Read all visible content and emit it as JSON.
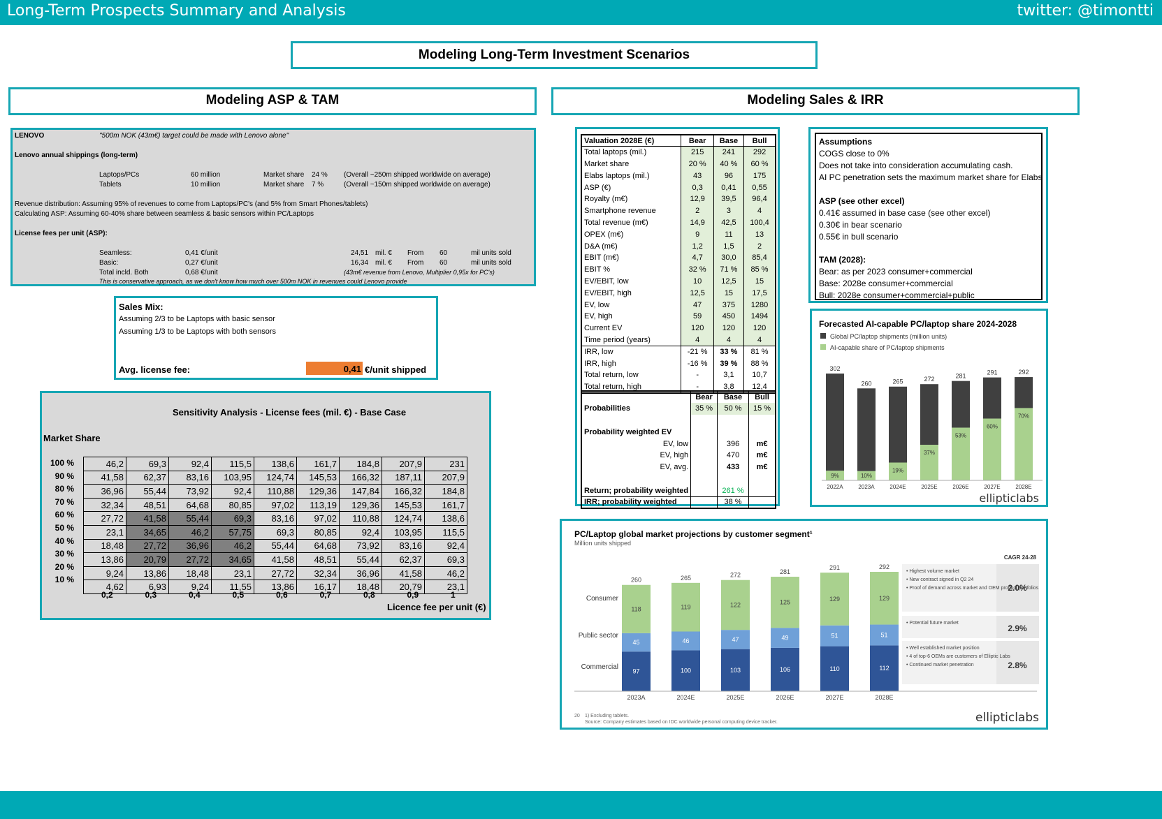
{
  "header": {
    "title": "Long-Term Prospects Summary and Analysis",
    "twitter": "twitter: @timontti"
  },
  "main_title": "Modeling Long-Term Investment Scenarios",
  "left_title": "Modeling ASP & TAM",
  "right_title": "Modeling Sales & IRR",
  "lenovo": {
    "label": "LENOVO",
    "quote": "\"500m NOK (43m€) target could be made with Lenovo alone\"",
    "ship_title": "Lenovo annual shippings (long-term)",
    "rows": [
      {
        "name": "Laptops/PCs",
        "units": "60 million",
        "ms_label": "Market share",
        "ms": "24 %",
        "note": "(Overall ~250m shipped worldwide on average)"
      },
      {
        "name": "Tablets",
        "units": "10 million",
        "ms_label": "Market share",
        "ms": "7 %",
        "note": "(Overall ~150m shipped worldwide on average)"
      }
    ],
    "rev_dist": "Revenue distribution: Assuming 95% of revenues to come from Laptops/PC's (and 5% from Smart Phones/tablets)",
    "calc_asp": "Calculating ASP: Assuming 60-40% share between seamless & basic sensors within PC/Laptops",
    "license_title": "License fees per unit (ASP):",
    "fees": [
      {
        "name": "Seamless:",
        "fee": "0,41 €/unit",
        "rev": "24,51",
        "unit": "mil. €",
        "from": "From",
        "n": "60",
        "sold": "mil units sold"
      },
      {
        "name": "Basic:",
        "fee": "0,27 €/unit",
        "rev": "16,34",
        "unit": "mil. €",
        "from": "From",
        "n": "60",
        "sold": "mil units sold"
      }
    ],
    "total_name": "Total incld. Both",
    "total_fee": "0,68 €/unit",
    "total_note": "(43m€ revenue from Lenovo, Multiplier 0,95x for PC's)",
    "conservative": "This is conservative approach, as we don't know how much over 500m NOK in revenues could Lenovo provide"
  },
  "sales_mix": {
    "title": "Sales Mix:",
    "line1": "Assuming 2/3 to be Laptops with basic sensor",
    "line2": "Assuming 1/3 to be Laptops with both sensors",
    "fee_label": "Avg. license fee:",
    "fee_value": "0,41",
    "fee_unit": "€/unit shipped",
    "accent": "#ed7d31"
  },
  "sensitivity": {
    "title": "Sensitivity Analysis - License fees (mil. €) - Base Case",
    "ylabel": "Market Share",
    "xlabel": "Licence fee per unit (€)",
    "rows": [
      "100 %",
      "90 %",
      "80 %",
      "70 %",
      "60 %",
      "50 %",
      "40 %",
      "30 %",
      "20 %",
      "10 %"
    ],
    "cols": [
      "0,2",
      "0,3",
      "0,4",
      "0,5",
      "0,6",
      "0,7",
      "0,8",
      "0,9",
      "1"
    ],
    "values": [
      [
        "46,2",
        "69,3",
        "92,4",
        "115,5",
        "138,6",
        "161,7",
        "184,8",
        "207,9",
        "231"
      ],
      [
        "41,58",
        "62,37",
        "83,16",
        "103,95",
        "124,74",
        "145,53",
        "166,32",
        "187,11",
        "207,9"
      ],
      [
        "36,96",
        "55,44",
        "73,92",
        "92,4",
        "110,88",
        "129,36",
        "147,84",
        "166,32",
        "184,8"
      ],
      [
        "32,34",
        "48,51",
        "64,68",
        "80,85",
        "97,02",
        "113,19",
        "129,36",
        "145,53",
        "161,7"
      ],
      [
        "27,72",
        "41,58",
        "55,44",
        "69,3",
        "83,16",
        "97,02",
        "110,88",
        "124,74",
        "138,6"
      ],
      [
        "23,1",
        "34,65",
        "46,2",
        "57,75",
        "69,3",
        "80,85",
        "92,4",
        "103,95",
        "115,5"
      ],
      [
        "18,48",
        "27,72",
        "36,96",
        "46,2",
        "55,44",
        "64,68",
        "73,92",
        "83,16",
        "92,4"
      ],
      [
        "13,86",
        "20,79",
        "27,72",
        "34,65",
        "41,58",
        "48,51",
        "55,44",
        "62,37",
        "69,3"
      ],
      [
        "9,24",
        "13,86",
        "18,48",
        "23,1",
        "27,72",
        "32,34",
        "36,96",
        "41,58",
        "46,2"
      ],
      [
        "4,62",
        "6,93",
        "9,24",
        "11,55",
        "13,86",
        "16,17",
        "18,48",
        "20,79",
        "23,1"
      ]
    ]
  },
  "valuation": {
    "headers": [
      "Valuation 2028E (€)",
      "Bear",
      "Base",
      "Bull"
    ],
    "rows": [
      [
        "Total laptops (mil.)",
        "215",
        "241",
        "292"
      ],
      [
        "Market share",
        "20 %",
        "40 %",
        "60 %"
      ],
      [
        "Elabs laptops (mil.)",
        "43",
        "96",
        "175"
      ],
      [
        "ASP (€)",
        "0,3",
        "0,41",
        "0,55"
      ],
      [
        "Royalty (m€)",
        "12,9",
        "39,5",
        "96,4"
      ],
      [
        "Smartphone revenue",
        "2",
        "3",
        "4"
      ],
      [
        "Total revenue (m€)",
        "14,9",
        "42,5",
        "100,4"
      ],
      [
        "OPEX (m€)",
        "9",
        "11",
        "13"
      ],
      [
        "D&A (m€)",
        "1,2",
        "1,5",
        "2"
      ],
      [
        "EBIT (m€)",
        "4,7",
        "30,0",
        "85,4"
      ],
      [
        "EBIT %",
        "32 %",
        "71 %",
        "85 %"
      ],
      [
        "EV/EBIT, low",
        "10",
        "12,5",
        "15"
      ],
      [
        "EV/EBIT, high",
        "12,5",
        "15",
        "17,5"
      ],
      [
        "EV, low",
        "47",
        "375",
        "1280"
      ],
      [
        "EV, high",
        "59",
        "450",
        "1494"
      ],
      [
        "Current EV",
        "120",
        "120",
        "120"
      ],
      [
        "Time period (years)",
        "4",
        "4",
        "4"
      ],
      [
        "IRR, low",
        "-21 %",
        "33 %",
        "81 %"
      ],
      [
        "IRR, high",
        "-16 %",
        "39 %",
        "88 %"
      ],
      [
        "Total return, low",
        "-",
        "3,1",
        "10,7"
      ],
      [
        "Total return, high",
        "-",
        "3,8",
        "12,4"
      ]
    ],
    "prob_headers": [
      "",
      "Bear",
      "Base",
      "Bull"
    ],
    "prob_label": "Probabilities",
    "prob": [
      "35 %",
      "50 %",
      "15 %"
    ],
    "pwev_label": "Probability weighted EV",
    "ev_rows": [
      [
        "EV, low",
        "396",
        "m€"
      ],
      [
        "EV, high",
        "470",
        "m€"
      ],
      [
        "EV, avg.",
        "433",
        "m€"
      ]
    ],
    "ret_label": "Return; probability weighted",
    "ret_value": "261 %",
    "irr_label": "IRR; probability weighted",
    "irr_value": "38 %",
    "green": "#00b050"
  },
  "assumptions": {
    "title": "Assumptions",
    "lines": [
      "COGS close to 0%",
      "Does not take into consideration accumulating cash.",
      "AI PC penetration sets the maximum market share for Elabs"
    ],
    "asp_title": "ASP (see other excel)",
    "asp_lines": [
      "0.41€ assumed in base case (see other excel)",
      "0.30€ in bear scenario",
      "0.55€ in bull scenario"
    ],
    "tam_title": "TAM (2028):",
    "tam_lines": [
      "Bear: as per 2023 consumer+commercial",
      "Base: 2028e consumer+commercial",
      "Bull: 2028e consumer+commercial+public"
    ]
  },
  "chart_data": [
    {
      "type": "bar",
      "title": "Forecasted AI-capable PC/laptop share 2024-2028",
      "categories": [
        "2022A",
        "2023A",
        "2024E",
        "2025E",
        "2026E",
        "2027E",
        "2028E"
      ],
      "series": [
        {
          "name": "Global PC/laptop shipments (million units)",
          "values": [
            302,
            260,
            265,
            272,
            281,
            291,
            292
          ]
        },
        {
          "name": "AI-capable share of PC/laptop shipments",
          "values": [
            9,
            10,
            19,
            37,
            53,
            60,
            70
          ]
        }
      ],
      "totals": [
        "302",
        "260",
        "265",
        "272",
        "281",
        "291",
        "292"
      ],
      "share_labels": [
        "9%",
        "10%",
        "19%",
        "37%",
        "53%",
        "60%",
        "70%"
      ],
      "colors": [
        "#404040",
        "#a9d18e"
      ],
      "brand": "ellipticlabs"
    },
    {
      "type": "bar",
      "title": "PC/Laptop global market projections by customer segment¹",
      "subtitle": "Million units shipped",
      "categories": [
        "2023A",
        "2024E",
        "2025E",
        "2026E",
        "2027E",
        "2028E"
      ],
      "series": [
        {
          "name": "Consumer",
          "values": [
            118,
            119,
            122,
            125,
            129,
            129
          ]
        },
        {
          "name": "Public sector",
          "values": [
            45,
            46,
            47,
            49,
            51,
            51
          ]
        },
        {
          "name": "Commercial",
          "values": [
            97,
            100,
            103,
            106,
            110,
            112
          ]
        }
      ],
      "totals": [
        "260",
        "265",
        "272",
        "281",
        "291",
        "292"
      ],
      "cagr_title": "CAGR 24-28",
      "cagr": [
        "2.0%",
        "2.9%",
        "2.8%"
      ],
      "notes": [
        [
          "Highest volume market",
          "New contract signed in Q2 24",
          "Proof of demand across market and OEM product portfolios"
        ],
        [
          "Potential future market"
        ],
        [
          "Well established market position",
          "4 of top-6 OEMs are customers of Elliptic Labs",
          "Continued market penetration"
        ]
      ],
      "footnote_page": "20",
      "footnote1": "1) Excluding tablets.",
      "footnote2": "Source: Company estimates based on IDC worldwide personal computing device tracker.",
      "colors": [
        "#a9d18e",
        "#6fa0d8",
        "#2f5597"
      ],
      "brand": "ellipticlabs"
    }
  ]
}
